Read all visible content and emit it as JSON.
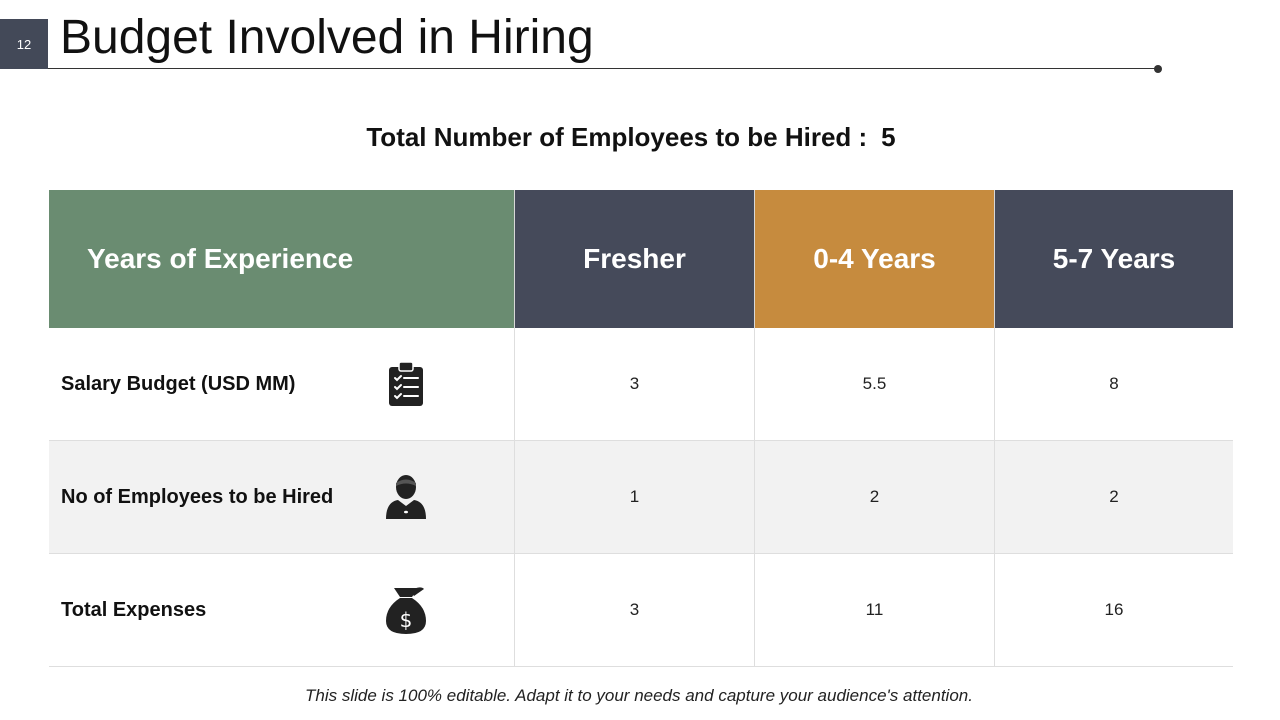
{
  "slide": {
    "page_number": "12",
    "title": "Budget Involved in Hiring",
    "subtitle_label": "Total Number of Employees to be Hired :",
    "subtitle_value": "5"
  },
  "table": {
    "headers": [
      "Years of Experience",
      "Fresher",
      "0-4 Years",
      "5-7 Years"
    ],
    "rows": [
      {
        "label": "Salary Budget (USD MM)",
        "icon": "clipboard-checklist-icon",
        "values": [
          "3",
          "5.5",
          "8"
        ]
      },
      {
        "label": "No of Employees to be Hired",
        "icon": "employee-icon",
        "values": [
          "1",
          "2",
          "2"
        ]
      },
      {
        "label": "Total Expenses",
        "icon": "money-bag-icon",
        "values": [
          "3",
          "11",
          "16"
        ]
      }
    ]
  },
  "colors": {
    "header_green": "#6a8c71",
    "header_slate": "#454a5a",
    "header_orange": "#c68b3e",
    "row_shade": "#f2f2f2"
  },
  "footer": {
    "note": "This slide is 100% editable. Adapt it to your needs and capture your audience's attention."
  }
}
